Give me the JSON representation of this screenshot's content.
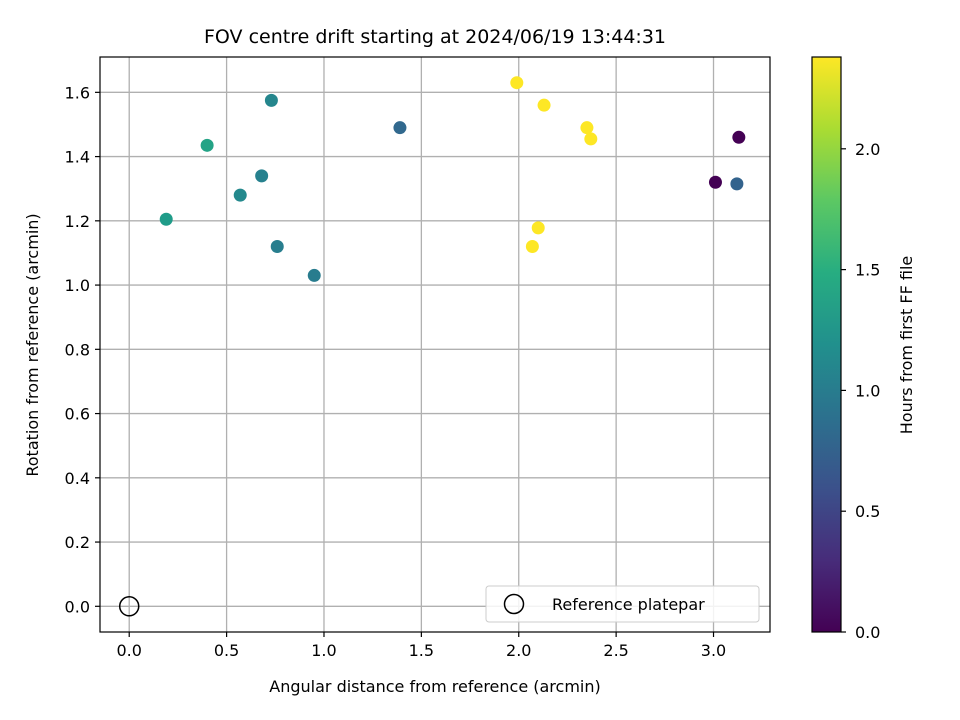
{
  "chart_data": {
    "type": "scatter",
    "title": "FOV centre drift starting at 2024/06/19 13:44:31",
    "xlabel": "Angular distance from reference (arcmin)",
    "ylabel": "Rotation from reference (arcmin)",
    "xlim": [
      -0.15,
      3.29
    ],
    "ylim": [
      -0.08,
      1.71
    ],
    "xticks": [
      "0.0",
      "0.5",
      "1.0",
      "1.5",
      "2.0",
      "2.5",
      "3.0"
    ],
    "yticks": [
      "0.0",
      "0.2",
      "0.4",
      "0.6",
      "0.8",
      "1.0",
      "1.2",
      "1.4",
      "1.6"
    ],
    "grid": true,
    "colormap": "viridis",
    "colorbar": {
      "label": "Hours from first FF file",
      "range": [
        0.0,
        2.38
      ],
      "ticks": [
        "0.0",
        "0.5",
        "1.0",
        "1.5",
        "2.0"
      ]
    },
    "legend": {
      "position": "lower-right",
      "entries": [
        "Reference platepar"
      ]
    },
    "reference_point": {
      "x": 0.0,
      "y": 0.0
    },
    "points": [
      {
        "x": 3.01,
        "y": 1.32,
        "hours": 0.0
      },
      {
        "x": 3.13,
        "y": 1.46,
        "hours": 0.0
      },
      {
        "x": 3.12,
        "y": 1.315,
        "hours": 0.75
      },
      {
        "x": 1.39,
        "y": 1.49,
        "hours": 0.8
      },
      {
        "x": 0.95,
        "y": 1.03,
        "hours": 1.0
      },
      {
        "x": 0.76,
        "y": 1.12,
        "hours": 1.02
      },
      {
        "x": 0.68,
        "y": 1.34,
        "hours": 1.05
      },
      {
        "x": 0.73,
        "y": 1.575,
        "hours": 1.1
      },
      {
        "x": 0.57,
        "y": 1.28,
        "hours": 1.12
      },
      {
        "x": 0.19,
        "y": 1.205,
        "hours": 1.3
      },
      {
        "x": 0.4,
        "y": 1.435,
        "hours": 1.38
      },
      {
        "x": 1.99,
        "y": 1.63,
        "hours": 2.38
      },
      {
        "x": 2.13,
        "y": 1.56,
        "hours": 2.38
      },
      {
        "x": 2.35,
        "y": 1.49,
        "hours": 2.38
      },
      {
        "x": 2.37,
        "y": 1.455,
        "hours": 2.38
      },
      {
        "x": 2.1,
        "y": 1.178,
        "hours": 2.38
      },
      {
        "x": 2.07,
        "y": 1.12,
        "hours": 2.38
      }
    ]
  }
}
